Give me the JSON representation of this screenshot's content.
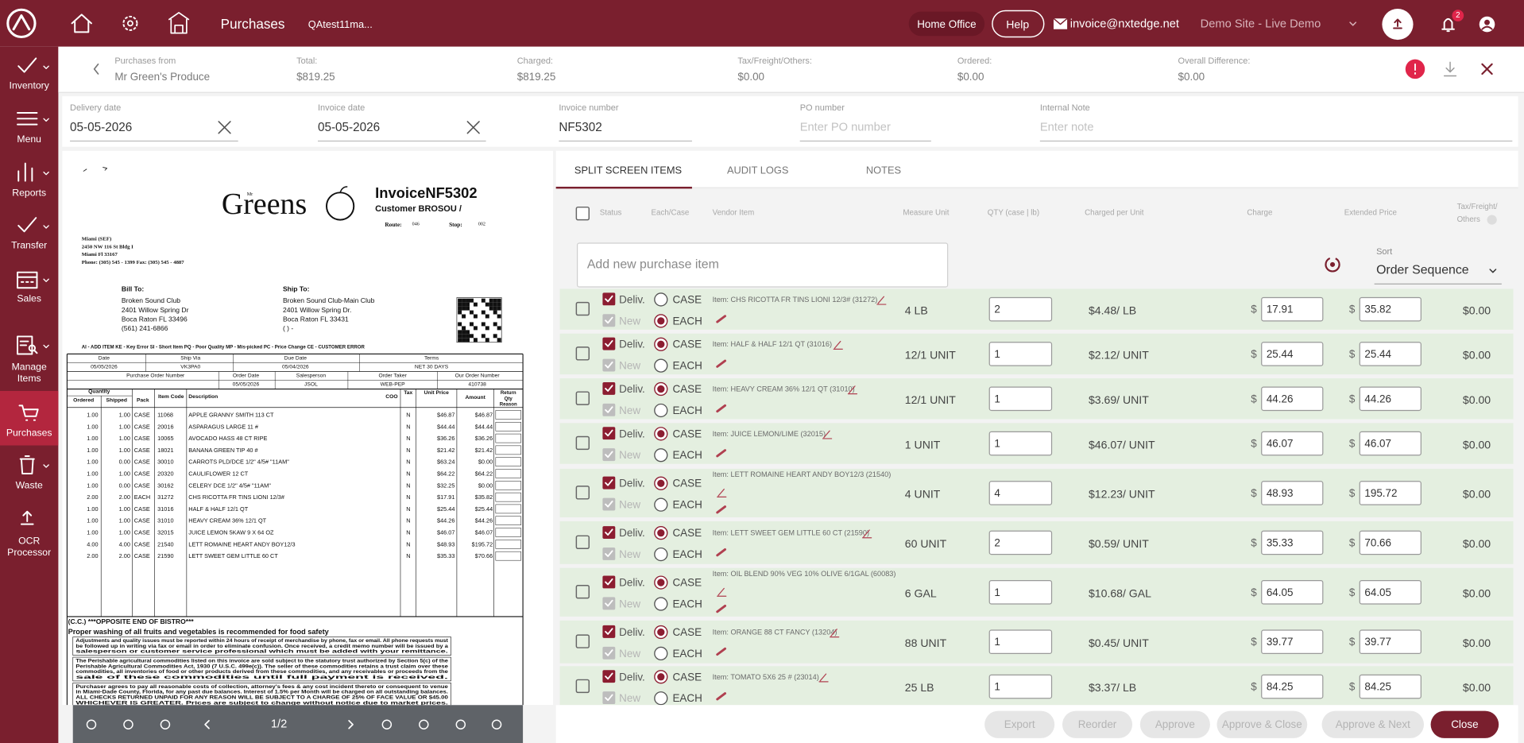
{
  "topbar": {
    "section": "Purchases",
    "tab": "QAtest11ma...",
    "location": "Home Office",
    "help": "Help",
    "email": "invoice@nxtedge.net",
    "site": "Demo Site - Live Demo",
    "notification_count": "2"
  },
  "sidebar": [
    {
      "lines": [
        "Inventory"
      ]
    },
    {
      "lines": [
        "Menu"
      ]
    },
    {
      "lines": [
        "Reports"
      ]
    },
    {
      "lines": [
        "Transfer"
      ]
    },
    {
      "lines": [
        "Sales"
      ]
    },
    {
      "lines": [
        "Manage",
        "Items"
      ]
    },
    {
      "lines": [
        "Purchases"
      ]
    },
    {
      "lines": [
        "Waste"
      ]
    },
    {
      "lines": [
        "OCR",
        "Processor"
      ]
    }
  ],
  "summary": [
    {
      "label": "Purchases from",
      "value": "Mr Green's Produce"
    },
    {
      "label": "Total:",
      "value": "$819.25"
    },
    {
      "label": "Charged:",
      "value": "$819.25"
    },
    {
      "label": "Tax/Freight/Others:",
      "value": "$0.00"
    },
    {
      "label": "Ordered:",
      "value": "$0.00"
    },
    {
      "label": "Overall Difference:",
      "value": "$0.00"
    }
  ],
  "fields": [
    {
      "label": "Delivery date",
      "value": "05-05-2026"
    },
    {
      "label": "Invoice date",
      "value": "05-05-2026"
    },
    {
      "label": "Invoice number",
      "value": "NF5302"
    },
    {
      "label": "PO number",
      "placeholder": "Enter PO number"
    },
    {
      "label": "Internal Note",
      "placeholder": "Enter note"
    }
  ],
  "tabs": [
    "SPLIT SCREEN ITEMS",
    "AUDIT LOGS",
    "NOTES"
  ],
  "columns": [
    [
      "Status"
    ],
    [
      "Each/Case"
    ],
    [
      "Vendor Item"
    ],
    [
      "Measure Unit"
    ],
    [
      "QTY (case | lb)"
    ],
    [
      "Charged per Unit"
    ],
    [
      "Charge"
    ],
    [
      "Extended Price"
    ],
    [
      "Tax/Freight/",
      "Others"
    ]
  ],
  "add_item_placeholder": "Add new purchase item",
  "sort": {
    "label": "Sort",
    "value": "Order Sequence"
  },
  "row_labels": {
    "deliv": "Deliv.",
    "new": "New",
    "case": "CASE",
    "each": "EACH",
    "currency": "$"
  },
  "items": [
    {
      "item": "Item: CHS RICOTTA FR TINS LIONI 12/3# (31272)",
      "unit": "4 LB",
      "qty": "2",
      "per_unit": "$4.48/ LB",
      "charge": "17.91",
      "extended": "35.82",
      "tax": "$0.00",
      "each": true
    },
    {
      "item": "Item: HALF & HALF 12/1 QT (31016)",
      "unit": "12/1 UNIT",
      "qty": "1",
      "per_unit": "$2.12/ UNIT",
      "charge": "25.44",
      "extended": "25.44",
      "tax": "$0.00",
      "each": false
    },
    {
      "item": "Item: HEAVY CREAM 36% 12/1 QT (31010)",
      "unit": "12/1 UNIT",
      "qty": "1",
      "per_unit": "$3.69/ UNIT",
      "charge": "44.26",
      "extended": "44.26",
      "tax": "$0.00",
      "each": false
    },
    {
      "item": "Item: JUICE LEMON/LIME (32015)",
      "unit": "1 UNIT",
      "qty": "1",
      "per_unit": "$46.07/ UNIT",
      "charge": "46.07",
      "extended": "46.07",
      "tax": "$0.00",
      "each": false
    },
    {
      "item": "Item: LETT ROMAINE HEART ANDY BOY12/3 (21540)",
      "unit": "4 UNIT",
      "qty": "4",
      "per_unit": "$12.23/ UNIT",
      "charge": "48.93",
      "extended": "195.72",
      "tax": "$0.00",
      "each": false
    },
    {
      "item": "Item: LETT SWEET GEM LITTLE 60 CT (21590)",
      "unit": "60 UNIT",
      "qty": "2",
      "per_unit": "$0.59/ UNIT",
      "charge": "35.33",
      "extended": "70.66",
      "tax": "$0.00",
      "each": false
    },
    {
      "item": "Item: OIL BLEND 90% VEG 10% OLIVE 6/1GAL (60083)",
      "unit": "6 GAL",
      "qty": "1",
      "per_unit": "$10.68/ GAL",
      "charge": "64.05",
      "extended": "64.05",
      "tax": "$0.00",
      "each": false
    },
    {
      "item": "Item: ORANGE 88 CT FANCY (13204)",
      "unit": "88 UNIT",
      "qty": "1",
      "per_unit": "$0.45/ UNIT",
      "charge": "39.77",
      "extended": "39.77",
      "tax": "$0.00",
      "each": false
    },
    {
      "item": "Item: TOMATO 5X6 25 # (23014)",
      "unit": "25 LB",
      "qty": "1",
      "per_unit": "$3.37/ LB",
      "charge": "84.25",
      "extended": "84.25",
      "tax": "$0.00",
      "each": false
    }
  ],
  "pager": "1/2",
  "buttons": [
    "Export",
    "Reorder",
    "Approve",
    "Approve & Close",
    "Approve & Next",
    "Close"
  ],
  "invoice": {
    "logo_small": "Mr",
    "logo": "Greens",
    "title": "InvoiceNF5302",
    "customer": "Customer BROSOU  /",
    "route_label": "Route:",
    "route": "046",
    "stop_label": "Stop:",
    "stop": "002",
    "vendor_address": [
      "Miami (SEF)",
      "2450 NW 116 St Bldg I",
      "Miami Fl 33167",
      "Phone: (305) 545 - 1399      Fax: (305) 545 - 4887"
    ],
    "bill_to": {
      "label": "Bill To:",
      "lines": [
        "Broken Sound Club",
        "2401 Willow Spring Dr",
        "Boca Raton FL 33496",
        "(561) 241-6866"
      ]
    },
    "ship_to": {
      "label": "Ship To:",
      "lines": [
        "Broken Sound Club-Main Club",
        "2401 Willow Spring Dr.",
        "Boca Raton FL 33431",
        "(   )   -"
      ]
    },
    "codes": "AI - ADD ITEM   KE - Key Error   SI - Short Item   PQ - Poor Quality   MP - Mis-picked   PC - Price Change   CE - CUSTOMER ERROR",
    "order_table": {
      "row1_headers": [
        "Date",
        "Ship Via",
        "Due Date",
        "Terms"
      ],
      "row1_values": [
        "05/05/2026",
        "VK3PA0",
        "05/04/2026",
        "NET 30 DAYS"
      ],
      "row2_headers": [
        "Purchase Order Number",
        "Order Date",
        "Salesperson",
        "Order Taker",
        "Our Order Number"
      ],
      "row2_values": [
        "05/05/2026",
        "JSOL",
        "WEB-PEP",
        "410738"
      ]
    },
    "line_headers": {
      "quantity": "Quantity",
      "ordered": "Ordered",
      "shipped": "Shipped",
      "pack": "Pack",
      "code": "Item Code",
      "description": "Description",
      "coo": "COO",
      "tax": "Tax",
      "unit_price": "Unit Price",
      "amount": "Amount",
      "return": [
        "Return",
        "Qty",
        "Reason"
      ]
    },
    "lines": [
      [
        "1.00",
        "1.00",
        "CASE",
        "11068",
        "APPLE GRANNY SMITH 113 CT",
        "N",
        "$46.87",
        "$46.87"
      ],
      [
        "1.00",
        "1.00",
        "CASE",
        "20016",
        "ASPARAGUS LARGE 11 #",
        "N",
        "$44.44",
        "$44.44"
      ],
      [
        "1.00",
        "1.00",
        "CASE",
        "10065",
        "AVOCADO HASS 48 CT RIPE",
        "N",
        "$36.26",
        "$36.26"
      ],
      [
        "1.00",
        "1.00",
        "CASE",
        "18021",
        "BANANA GREEN TIP 40 #",
        "N",
        "$21.42",
        "$21.42"
      ],
      [
        "1.00",
        "0.00",
        "CASE",
        "30010",
        "CARROTS PLD/DCE 1/2\" 4/5# \"11AM\"",
        "N",
        "$63.24",
        "$0.00"
      ],
      [
        "1.00",
        "1.00",
        "CASE",
        "20320",
        "CAULIFLOWER 12 CT",
        "N",
        "$64.22",
        "$64.22"
      ],
      [
        "1.00",
        "0.00",
        "CASE",
        "30162",
        "CELERY DCE 1/2\" 4/5# \"11AM\"",
        "N",
        "$32.25",
        "$0.00"
      ],
      [
        "2.00",
        "2.00",
        "EACH",
        "31272",
        "CHS RICOTTA FR TINS LIONI 12/3#",
        "N",
        "$17.91",
        "$35.82"
      ],
      [
        "1.00",
        "1.00",
        "CASE",
        "31016",
        "HALF & HALF 12/1 QT",
        "N",
        "$25.44",
        "$25.44"
      ],
      [
        "1.00",
        "1.00",
        "CASE",
        "31010",
        "HEAVY CREAM 36% 12/1 QT",
        "N",
        "$44.26",
        "$44.26"
      ],
      [
        "1.00",
        "1.00",
        "CASE",
        "32015",
        "JUICE LEMON 5KAW 9 X 64 OZ",
        "N",
        "$46.07",
        "$46.07"
      ],
      [
        "4.00",
        "4.00",
        "CASE",
        "21540",
        "LETT ROMAINE HEART ANDY BOY12/3",
        "N",
        "$48.93",
        "$195.72"
      ],
      [
        "2.00",
        "2.00",
        "CASE",
        "21590",
        "LETT SWEET GEM LITTLE 60 CT",
        "N",
        "$35.33",
        "$70.66"
      ]
    ],
    "note": "(C.C.) ***OPPOSITE END OF BISTRO***",
    "safety": "Proper washing of all fruits and vegetables is recommended for food safety",
    "terms": [
      [
        "Adjustments and quality issues must be reported within 24 hours of receipt of merchandise by phone, fax or email. All phone requests must",
        "be followed up in writing via fax or email in order to eliminate confusion. Once received, a credit memo number will be issued by a",
        "salesperson or customer service professional which must be added with your remittance."
      ],
      [
        "The Perishable agricultural commodities listed on this invoice are sold subject to the statutory trust authorized by Section 5(c) of the",
        "Perishable Agricultural Commodities Act, 1930 (7 U.S.C. 499e(c)). The seller of these commodities retains a trust claim over these",
        "commodities, all inventories of food or other products derived from these commodities, and any receivables or proceeds from the",
        "sale of these commodities until full payment is received."
      ],
      [
        "Purchaser agrees to pay all reasonable costs of collection, attorney's fees & any cost incident thereto or consequent to venue",
        "in Miami-Dade County, Florida, for any past due balances. Interest of 1.5% per Month will be charged on all outstanding balances.",
        "ALL CHECKS RETURNED UNPAID FOR ANY REASON WILL BE SUBJECT TO A CHARGE OF 25% OF FACE VALUE OR $45.00",
        "WHICHEVER IS GREATER. Prices are subject to change without notice due to market prices."
      ]
    ]
  }
}
